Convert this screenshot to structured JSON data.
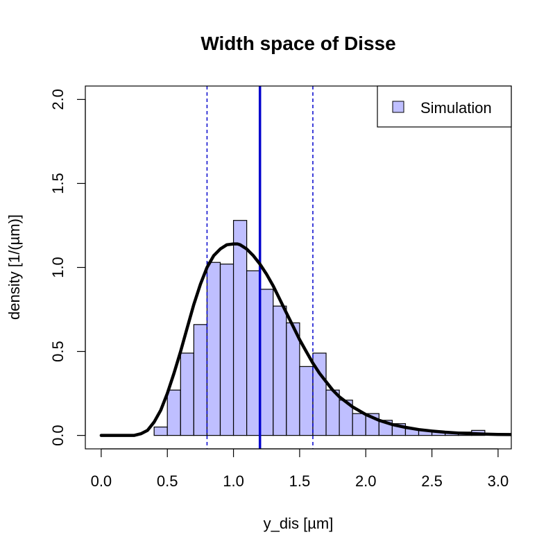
{
  "chart_data": {
    "type": "bar",
    "title": "Width space of Disse",
    "xlabel": "y_dis [µm]",
    "ylabel": "density [1/(µm)]",
    "xlim": [
      -0.12,
      3.1
    ],
    "ylim": [
      -0.08,
      2.08
    ],
    "xticks": [
      "0.0",
      "0.5",
      "1.0",
      "1.5",
      "2.0",
      "2.5",
      "3.0"
    ],
    "yticks": [
      "0.0",
      "0.5",
      "1.0",
      "1.5",
      "2.0"
    ],
    "grid": false,
    "legend": {
      "position": "top-right",
      "entries": [
        "Simulation"
      ]
    },
    "colors": {
      "bar_fill": "#bfbfff",
      "bar_stroke": "#000000",
      "curve": "#000000",
      "vline": "#0000cd"
    },
    "histogram": {
      "name": "Simulation",
      "bin_width": 0.1,
      "bin_starts": [
        0.4,
        0.5,
        0.6,
        0.7,
        0.8,
        0.9,
        1.0,
        1.1,
        1.2,
        1.3,
        1.4,
        1.5,
        1.6,
        1.7,
        1.8,
        1.9,
        2.0,
        2.1,
        2.2,
        2.3,
        2.4,
        2.5,
        2.6,
        2.7,
        2.8
      ],
      "values": [
        0.05,
        0.27,
        0.49,
        0.66,
        1.03,
        1.02,
        1.28,
        0.98,
        0.87,
        0.77,
        0.67,
        0.41,
        0.49,
        0.27,
        0.21,
        0.13,
        0.13,
        0.09,
        0.07,
        0.04,
        0.03,
        0.02,
        0.02,
        0.02,
        0.03
      ]
    },
    "density_curve": {
      "x": [
        0.0,
        0.1,
        0.2,
        0.25,
        0.3,
        0.35,
        0.4,
        0.45,
        0.5,
        0.55,
        0.6,
        0.65,
        0.7,
        0.75,
        0.8,
        0.85,
        0.9,
        0.95,
        1.0,
        1.03,
        1.05,
        1.1,
        1.15,
        1.2,
        1.25,
        1.3,
        1.35,
        1.4,
        1.45,
        1.5,
        1.55,
        1.6,
        1.65,
        1.7,
        1.75,
        1.8,
        1.9,
        2.0,
        2.1,
        2.2,
        2.3,
        2.4,
        2.5,
        2.6,
        2.7,
        2.8,
        2.9,
        3.0,
        3.1
      ],
      "y": [
        0.0,
        0.0,
        0.0,
        0.0,
        0.01,
        0.03,
        0.08,
        0.15,
        0.25,
        0.37,
        0.5,
        0.64,
        0.78,
        0.9,
        1.0,
        1.07,
        1.11,
        1.135,
        1.14,
        1.14,
        1.135,
        1.11,
        1.07,
        1.02,
        0.96,
        0.89,
        0.81,
        0.73,
        0.65,
        0.57,
        0.5,
        0.43,
        0.37,
        0.32,
        0.27,
        0.23,
        0.17,
        0.125,
        0.09,
        0.065,
        0.048,
        0.035,
        0.026,
        0.019,
        0.014,
        0.011,
        0.008,
        0.006,
        0.005
      ]
    },
    "vlines": [
      {
        "x": 1.2,
        "style": "solid"
      },
      {
        "x": 0.8,
        "style": "dashed"
      },
      {
        "x": 1.6,
        "style": "dashed"
      }
    ]
  }
}
